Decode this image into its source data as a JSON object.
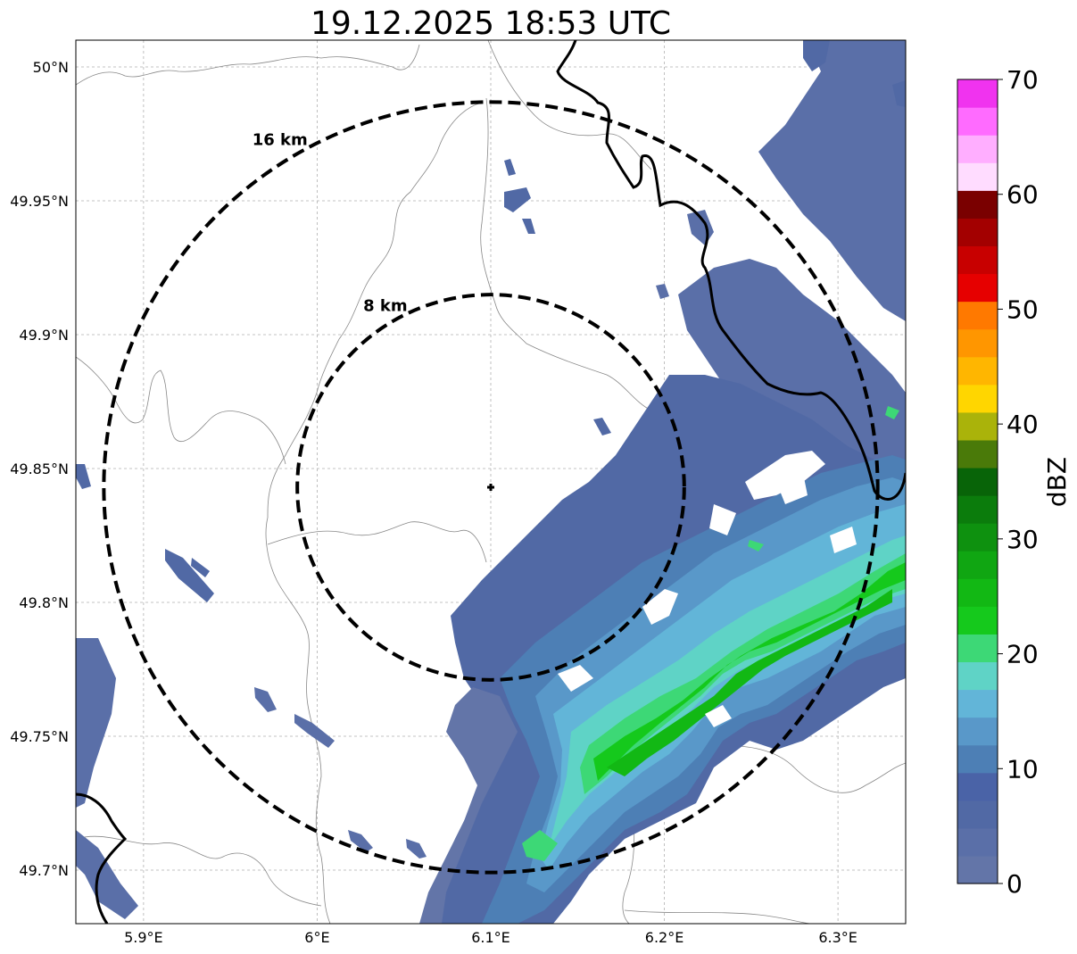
{
  "title": "19.12.2025 18:53 UTC",
  "map": {
    "lon_ticks": [
      {
        "value": 5.9,
        "label": "5.9°E"
      },
      {
        "value": 6.0,
        "label": "6°E"
      },
      {
        "value": 6.1,
        "label": "6.1°E"
      },
      {
        "value": 6.2,
        "label": "6.2°E"
      },
      {
        "value": 6.3,
        "label": "6.3°E"
      }
    ],
    "lat_ticks": [
      {
        "value": 50.0,
        "label": "50°N"
      },
      {
        "value": 49.95,
        "label": "49.95°N"
      },
      {
        "value": 49.9,
        "label": "49.9°N"
      },
      {
        "value": 49.85,
        "label": "49.85°N"
      },
      {
        "value": 49.8,
        "label": "49.8°N"
      },
      {
        "value": 49.75,
        "label": "49.75°N"
      },
      {
        "value": 49.7,
        "label": "49.7°N"
      }
    ],
    "lon_range": [
      5.861,
      6.339
    ],
    "lat_range": [
      49.68,
      50.01
    ],
    "gridlines": true,
    "radar_site": {
      "lon": 6.1,
      "lat": 49.843
    },
    "range_rings": [
      {
        "radius_km": 8,
        "label": "8 km"
      },
      {
        "radius_km": 16,
        "label": "16 km"
      }
    ]
  },
  "colorbar": {
    "label": "dBZ",
    "min": 0,
    "max": 70,
    "tick_labels": [
      "0",
      "10",
      "20",
      "30",
      "40",
      "50",
      "60",
      "70"
    ],
    "colors": [
      "#6375a8",
      "#5a6fa8",
      "#5169a5",
      "#4a63a7",
      "#4d7fb5",
      "#5998c9",
      "#62b5d8",
      "#5fd3c6",
      "#3dd876",
      "#15c91c",
      "#12b814",
      "#10a612",
      "#0e910f",
      "#0b7c0c",
      "#086408",
      "#4a7a09",
      "#aab30a",
      "#ffd600",
      "#ffb600",
      "#ff9600",
      "#ff7900",
      "#e60000",
      "#c80000",
      "#a30000",
      "#7a0000",
      "#ffdcff",
      "#ffaeff",
      "#ff6bff",
      "#f033ef"
    ]
  }
}
